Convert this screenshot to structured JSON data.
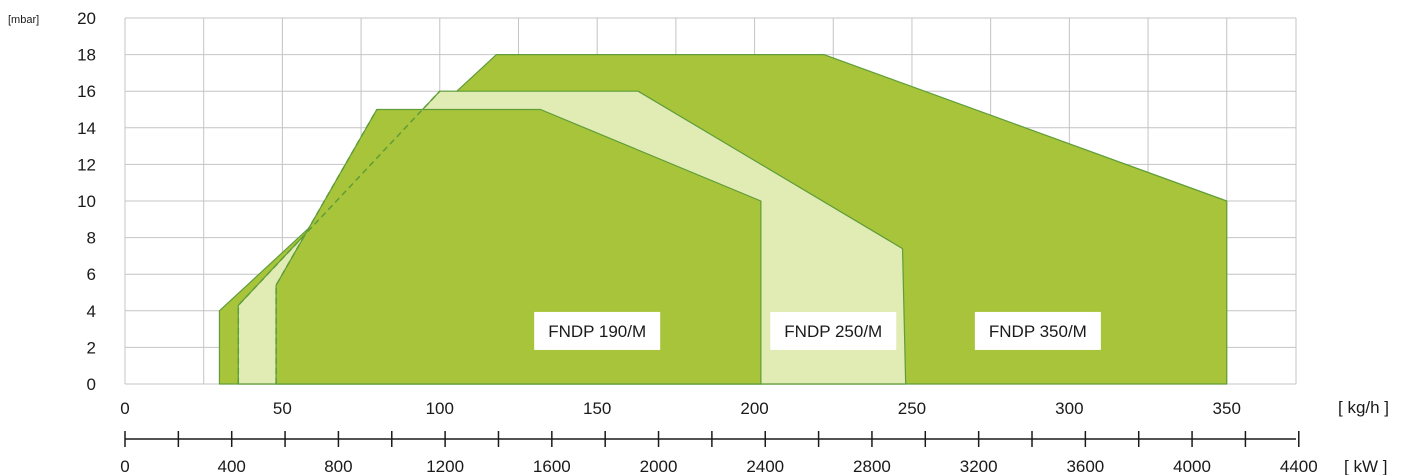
{
  "chart_data": {
    "type": "area",
    "ylabel": "[mbar]",
    "xlabel": "[ kg/h ]",
    "x2label": "[ kW ]",
    "xlim": [
      0,
      372
    ],
    "ylim": [
      0,
      20
    ],
    "y_ticks": [
      0,
      2,
      4,
      6,
      8,
      10,
      12,
      14,
      16,
      18,
      20
    ],
    "x_ticks": [
      0,
      50,
      100,
      150,
      200,
      250,
      300,
      350
    ],
    "x_minor_gridlines": [
      25,
      75,
      125,
      175,
      225,
      275,
      325,
      372
    ],
    "x2_ticks": [
      0,
      400,
      800,
      1200,
      1600,
      2000,
      2400,
      2800,
      3200,
      3600,
      4000,
      4400
    ],
    "x2_minor_ticks": [
      200,
      600,
      1000,
      1400,
      1800,
      2200,
      2600,
      3000,
      3400,
      3800,
      4200
    ],
    "kw_per_kgh": 11.8,
    "grid": true,
    "colors": {
      "fill_dark": "#a8c43a",
      "fill_light": "#e1ebb4",
      "outline": "#5e9d38",
      "grid": "#c4c4c4",
      "axis": "#1a1a1a"
    },
    "series": [
      {
        "name": "FNDP 350/M",
        "fill": "dark",
        "points": [
          [
            30,
            0
          ],
          [
            30,
            4
          ],
          [
            118,
            18
          ],
          [
            222,
            18
          ],
          [
            350,
            10
          ],
          [
            350,
            0
          ]
        ]
      },
      {
        "name": "FNDP 250/M",
        "fill": "light",
        "points": [
          [
            36,
            0
          ],
          [
            36,
            4.3
          ],
          [
            100,
            16
          ],
          [
            163,
            16
          ],
          [
            247,
            7.4
          ],
          [
            248,
            0
          ]
        ]
      },
      {
        "name": "FNDP 190/M",
        "fill": "dark",
        "points": [
          [
            48,
            0
          ],
          [
            48,
            5.4
          ],
          [
            80,
            15
          ],
          [
            132,
            15
          ],
          [
            202,
            10
          ],
          [
            202,
            0
          ]
        ]
      }
    ],
    "dashed_lines": [
      [
        [
          36,
          0
        ],
        [
          36,
          4.3
        ],
        [
          100,
          16
        ]
      ],
      [
        [
          48,
          0
        ],
        [
          48,
          5.4
        ],
        [
          80,
          15
        ]
      ]
    ],
    "series_labels": [
      {
        "text": "FNDP 190/M",
        "x": 150,
        "y": 2.9
      },
      {
        "text": "FNDP 250/M",
        "x": 225,
        "y": 2.9
      },
      {
        "text": "FNDP 350/M",
        "x": 290,
        "y": 2.9
      }
    ]
  }
}
